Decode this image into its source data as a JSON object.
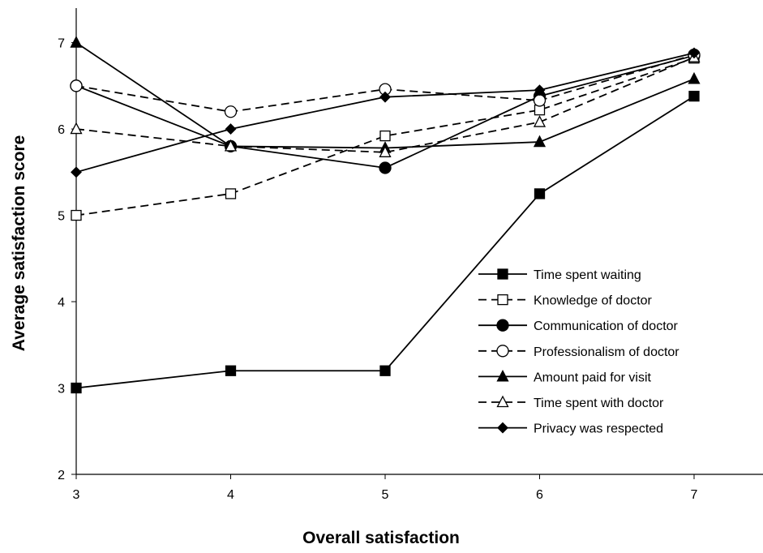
{
  "chart_data": {
    "type": "line",
    "title": "",
    "xlabel": "Overall satisfaction",
    "ylabel": "Average satisfaction score",
    "x": [
      3,
      4,
      5,
      6,
      7
    ],
    "xlim": [
      3,
      7.45
    ],
    "ylim": [
      2,
      7.4
    ],
    "xticks": [
      "3",
      "4",
      "5",
      "6",
      "7"
    ],
    "yticks": [
      "2",
      "3",
      "4",
      "5",
      "6",
      "7"
    ],
    "grid": false,
    "legend_position": "lower-right",
    "series": [
      {
        "name": "Time spent waiting",
        "values": [
          3.0,
          3.2,
          3.2,
          5.25,
          6.38
        ],
        "marker": "square-filled",
        "line": "solid",
        "color": "#000000"
      },
      {
        "name": "Knowledge of doctor",
        "values": [
          5.0,
          5.25,
          5.92,
          6.22,
          6.82
        ],
        "marker": "square-open",
        "line": "dashed",
        "color": "#000000"
      },
      {
        "name": "Communication of doctor",
        "values": [
          6.5,
          5.8,
          5.55,
          6.38,
          6.85
        ],
        "marker": "circle-filled",
        "line": "solid",
        "color": "#000000"
      },
      {
        "name": "Professionalism of doctor",
        "values": [
          6.5,
          6.2,
          6.46,
          6.33,
          6.86
        ],
        "marker": "circle-open",
        "line": "dashed",
        "color": "#000000"
      },
      {
        "name": "Amount paid for visit",
        "values": [
          7.0,
          5.8,
          5.78,
          5.85,
          6.58
        ],
        "marker": "triangle-filled",
        "line": "solid",
        "color": "#000000"
      },
      {
        "name": "Time spent with doctor",
        "values": [
          6.0,
          5.8,
          5.73,
          6.08,
          6.83
        ],
        "marker": "triangle-open",
        "line": "dashed",
        "color": "#000000"
      },
      {
        "name": "Privacy was respected",
        "values": [
          5.5,
          6.0,
          6.37,
          6.45,
          6.88
        ],
        "marker": "diamond-filled",
        "line": "solid",
        "color": "#000000"
      }
    ]
  }
}
